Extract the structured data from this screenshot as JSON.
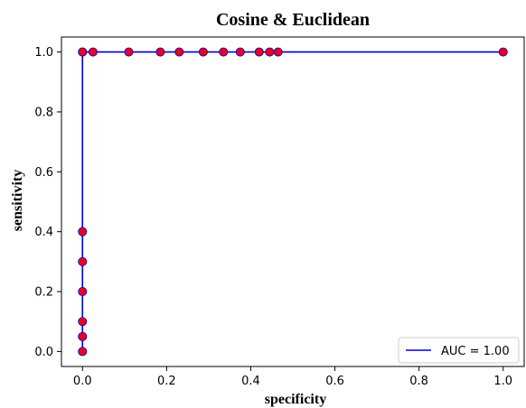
{
  "chart_data": {
    "type": "line",
    "title": "Cosine & Euclidean",
    "xlabel": "specificity",
    "ylabel": "sensitivity",
    "xlim": [
      -0.05,
      1.05
    ],
    "ylim": [
      -0.05,
      1.05
    ],
    "x_ticks": [
      0.0,
      0.2,
      0.4,
      0.6,
      0.8,
      1.0
    ],
    "y_ticks": [
      0.0,
      0.2,
      0.4,
      0.6,
      0.8,
      1.0
    ],
    "x_tick_labels": [
      "0.0",
      "0.2",
      "0.4",
      "0.6",
      "0.8",
      "1.0"
    ],
    "y_tick_labels": [
      "0.0",
      "0.2",
      "0.4",
      "0.6",
      "0.8",
      "1.0"
    ],
    "grid": false,
    "legend_position": "lower-right",
    "series": [
      {
        "name": "AUC = 1.00",
        "line_color": "#0000cc",
        "marker_color": "#e8001c",
        "x": [
          0.0,
          0.0,
          0.0,
          0.0,
          0.0,
          0.0,
          0.0,
          0.0,
          0.025,
          0.11,
          0.185,
          0.23,
          0.287,
          0.335,
          0.375,
          0.42,
          0.445,
          0.465,
          1.0
        ],
        "y": [
          0.0,
          0.05,
          0.1,
          0.2,
          0.3,
          0.4,
          1.0,
          1.0,
          1.0,
          1.0,
          1.0,
          1.0,
          1.0,
          1.0,
          1.0,
          1.0,
          1.0,
          1.0,
          1.0
        ]
      }
    ]
  }
}
